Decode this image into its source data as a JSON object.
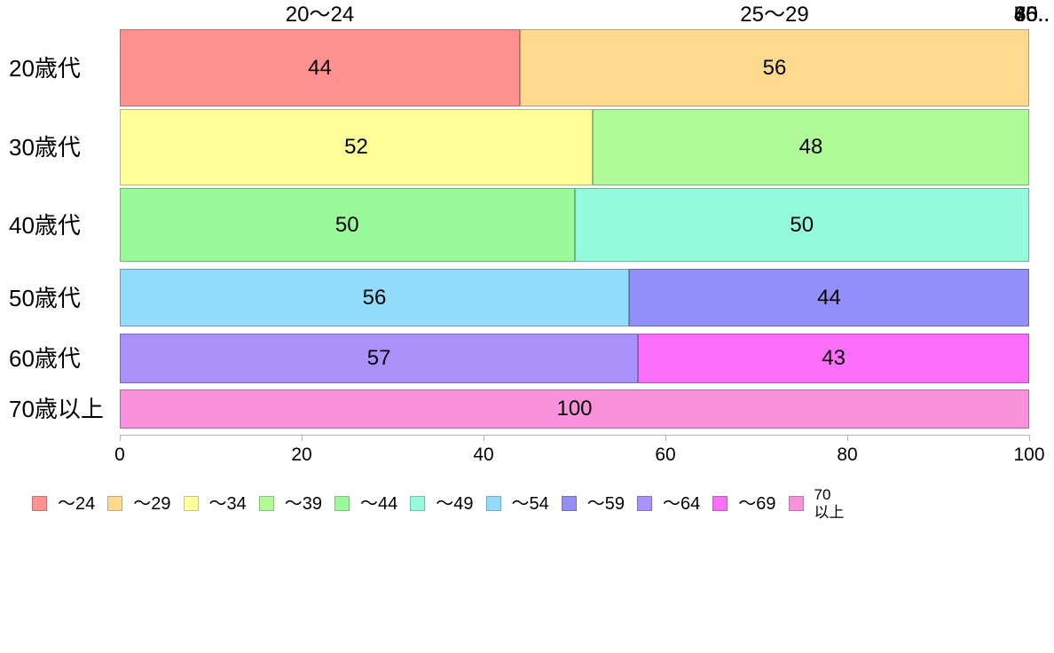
{
  "chart_data": {
    "type": "bar",
    "orientation": "horizontal",
    "stacked": true,
    "unit": "percent",
    "title": "",
    "xlabel": "",
    "ylabel": "",
    "xlim": [
      0,
      100
    ],
    "grid": false,
    "legend_position": "bottom",
    "axis_color": "#b3b3b3",
    "text_color": "#000000",
    "categories": [
      "20歳代",
      "30歳代",
      "40歳代",
      "50歳代",
      "60歳代",
      "70歳以上"
    ],
    "series": [
      {
        "name": "〜24",
        "color": "#FF9191"
      },
      {
        "name": "〜29",
        "color": "#FFD98E"
      },
      {
        "name": "〜34",
        "color": "#FFFF99"
      },
      {
        "name": "〜39",
        "color": "#B1FA99"
      },
      {
        "name": "〜44",
        "color": "#99FA99"
      },
      {
        "name": "〜49",
        "color": "#94FADC"
      },
      {
        "name": "〜54",
        "color": "#91DCFA"
      },
      {
        "name": "〜59",
        "color": "#938FFA"
      },
      {
        "name": "〜64",
        "color": "#AB91FA"
      },
      {
        "name": "〜69",
        "color": "#FA6EFA"
      },
      {
        "name": "70以上",
        "color": "#FA91DC"
      }
    ],
    "rows": [
      {
        "category": "20歳代",
        "segments": [
          {
            "series_index": 0,
            "value": 44,
            "label": "44"
          },
          {
            "series_index": 1,
            "value": 56,
            "label": "56"
          }
        ]
      },
      {
        "category": "30歳代",
        "segments": [
          {
            "series_index": 2,
            "value": 52,
            "label": "52"
          },
          {
            "series_index": 3,
            "value": 48,
            "label": "48"
          }
        ]
      },
      {
        "category": "40歳代",
        "segments": [
          {
            "series_index": 4,
            "value": 50,
            "label": "50"
          },
          {
            "series_index": 5,
            "value": 50,
            "label": "50"
          }
        ]
      },
      {
        "category": "50歳代",
        "segments": [
          {
            "series_index": 6,
            "value": 56,
            "label": "56"
          },
          {
            "series_index": 7,
            "value": 44,
            "label": "44"
          }
        ]
      },
      {
        "category": "60歳代",
        "segments": [
          {
            "series_index": 8,
            "value": 57,
            "label": "57"
          },
          {
            "series_index": 9,
            "value": 43,
            "label": "43"
          }
        ]
      },
      {
        "category": "70歳以上",
        "segments": [
          {
            "series_index": 10,
            "value": 100,
            "label": "100"
          }
        ]
      }
    ],
    "x_ticks": [
      {
        "label": "0",
        "value": 0
      },
      {
        "label": "20",
        "value": 20
      },
      {
        "label": "40",
        "value": 40
      },
      {
        "label": "60",
        "value": 60
      },
      {
        "label": "80",
        "value": 80
      },
      {
        "label": "100",
        "value": 100
      }
    ],
    "top_axis_labels": [
      {
        "text": "20〜24",
        "x_pct": 22
      },
      {
        "text": "25〜29",
        "x_pct": 72
      }
    ],
    "top_axis_overflow_labels": [
      "30..",
      "35..",
      "40..",
      "45..",
      "50..",
      "55..",
      "60..",
      "65..",
      "70.."
    ]
  },
  "legend": {
    "items": [
      {
        "label": "〜24",
        "color": "#FF9191"
      },
      {
        "label": "〜29",
        "color": "#FFD98E"
      },
      {
        "label": "〜34",
        "color": "#FFFF99"
      },
      {
        "label": "〜39",
        "color": "#B1FA99"
      },
      {
        "label": "〜44",
        "color": "#99FA99"
      },
      {
        "label": "〜49",
        "color": "#94FADC"
      },
      {
        "label": "〜54",
        "color": "#91DCFA"
      },
      {
        "label": "〜59",
        "color": "#938FFA"
      },
      {
        "label": "〜64",
        "color": "#AB91FA"
      },
      {
        "label": "〜69",
        "color": "#FA6EFA"
      },
      {
        "label": "70\n以上",
        "color": "#FA91DC"
      }
    ]
  }
}
